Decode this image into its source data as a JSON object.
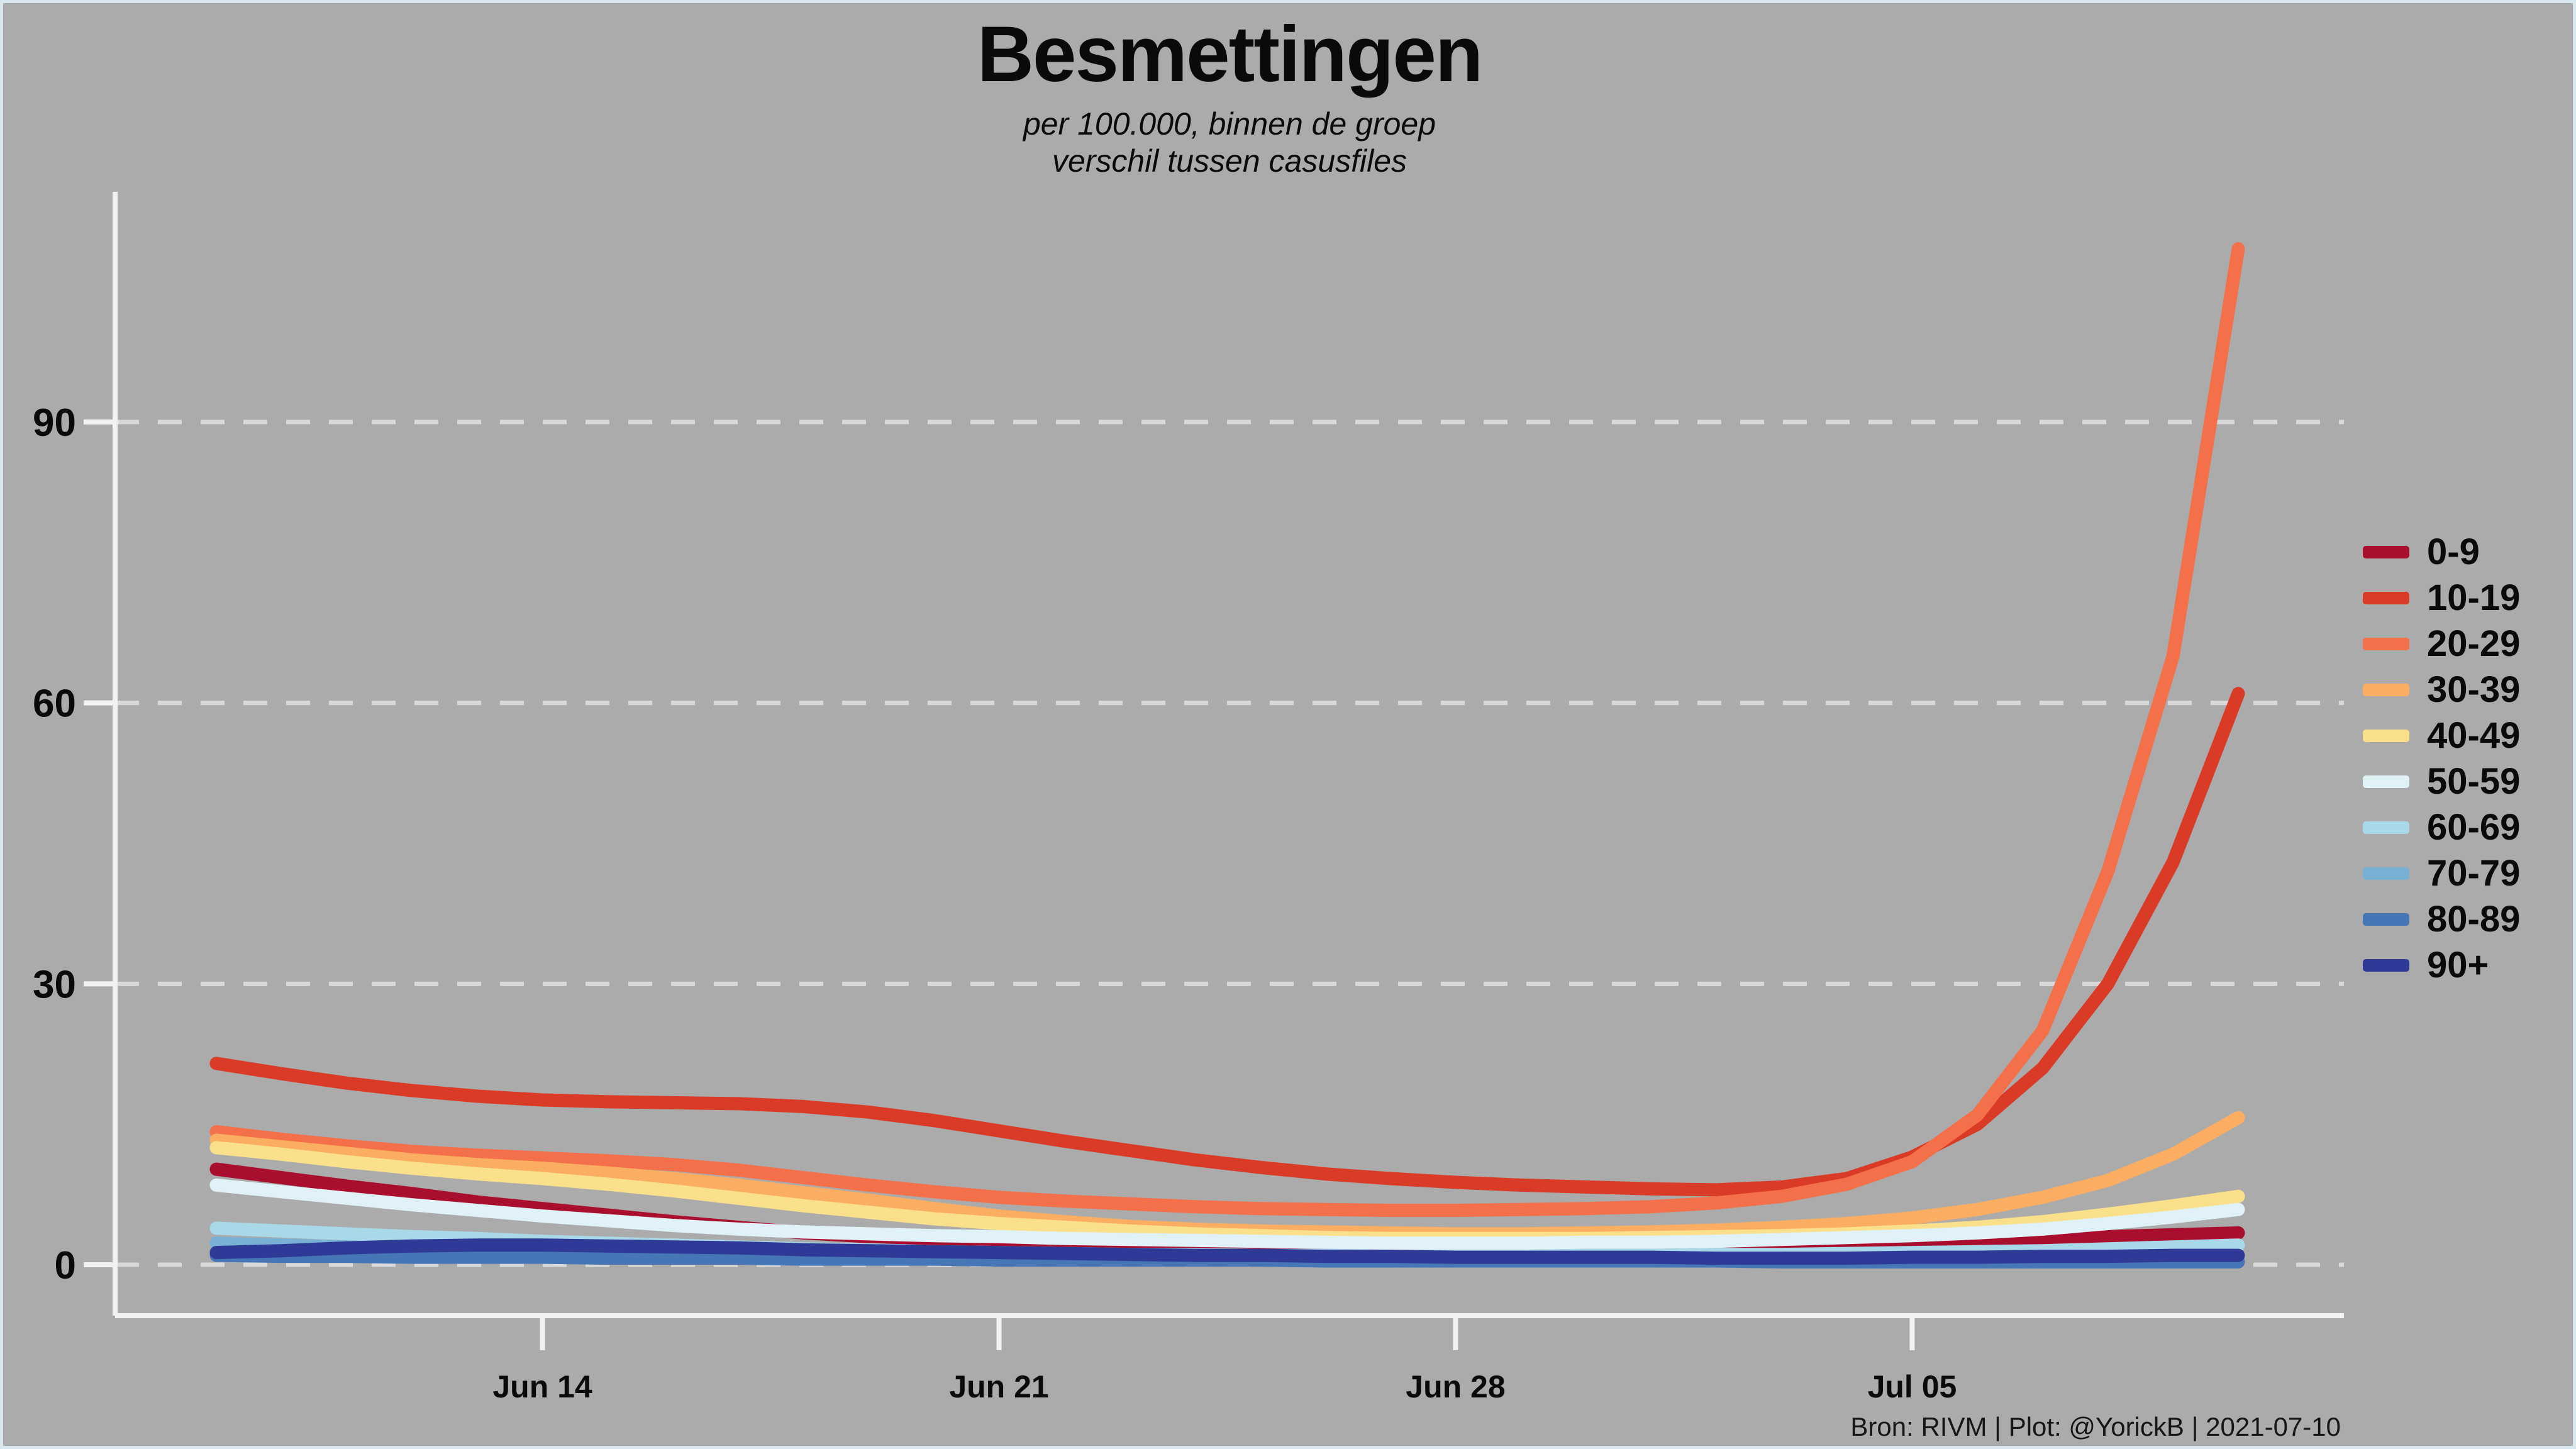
{
  "title": "Besmettingen",
  "subtitle_line1": "per 100.000, binnen de groep",
  "subtitle_line2": "verschil tussen casusfiles",
  "footer": "Bron: RIVM | Plot: @YorickB  |  2021-07-10",
  "colors": {
    "background": "#ababab",
    "border": "#d8e7ee",
    "axis": "#f2f2f2",
    "gridline": "#d9d9d9",
    "text": "#0a0a0a"
  },
  "chart_data": {
    "type": "line",
    "title": "Besmettingen",
    "subtitle": "per 100.000, binnen de groep / verschil tussen casusfiles",
    "xlabel": "",
    "ylabel": "",
    "ylim": [
      -2,
      114
    ],
    "y_ticks": [
      0,
      30,
      60,
      90
    ],
    "grid": "horizontal-dashed",
    "legend_position": "right",
    "x": [
      "Jun 09",
      "Jun 10",
      "Jun 11",
      "Jun 12",
      "Jun 13",
      "Jun 14",
      "Jun 15",
      "Jun 16",
      "Jun 17",
      "Jun 18",
      "Jun 19",
      "Jun 20",
      "Jun 21",
      "Jun 22",
      "Jun 23",
      "Jun 24",
      "Jun 25",
      "Jun 26",
      "Jun 27",
      "Jun 28",
      "Jun 29",
      "Jun 30",
      "Jul 01",
      "Jul 02",
      "Jul 03",
      "Jul 04",
      "Jul 05",
      "Jul 06",
      "Jul 07",
      "Jul 08",
      "Jul 09",
      "Jul 10"
    ],
    "x_ticks": [
      {
        "label": "Jun 14",
        "index": 5
      },
      {
        "label": "Jun 21",
        "index": 12
      },
      {
        "label": "Jun 28",
        "index": 19
      },
      {
        "label": "Jul 05",
        "index": 26
      }
    ],
    "series": [
      {
        "name": "0-9",
        "color": "#a90e2e",
        "values": [
          10.2,
          9.3,
          8.4,
          7.6,
          6.7,
          6.0,
          5.3,
          4.6,
          4.0,
          3.4,
          3.0,
          2.7,
          2.4,
          2.2,
          2.1,
          2.0,
          1.9,
          1.9,
          1.8,
          1.8,
          1.8,
          1.9,
          1.9,
          2.0,
          2.1,
          2.2,
          2.4,
          2.6,
          2.8,
          3.0,
          3.2,
          3.4
        ]
      },
      {
        "name": "10-19",
        "color": "#da3b27",
        "values": [
          21.5,
          20.4,
          19.4,
          18.6,
          18.0,
          17.6,
          17.4,
          17.3,
          17.2,
          16.9,
          16.3,
          15.4,
          14.3,
          13.2,
          12.2,
          11.2,
          10.4,
          9.7,
          9.2,
          8.8,
          8.5,
          8.3,
          8.1,
          8.0,
          8.3,
          9.2,
          11.5,
          15.0,
          21.0,
          30.0,
          43.0,
          61.0
        ]
      },
      {
        "name": "20-29",
        "color": "#f4704a",
        "values": [
          14.2,
          13.4,
          12.7,
          12.1,
          11.7,
          11.4,
          11.1,
          10.7,
          10.1,
          9.3,
          8.5,
          7.8,
          7.2,
          6.8,
          6.5,
          6.2,
          6.0,
          5.9,
          5.8,
          5.8,
          5.9,
          6.0,
          6.2,
          6.6,
          7.3,
          8.6,
          11.0,
          16.0,
          25.0,
          42.0,
          65.0,
          108.5
        ]
      },
      {
        "name": "30-39",
        "color": "#fbae61",
        "values": [
          13.3,
          12.6,
          11.9,
          11.2,
          10.7,
          10.3,
          9.8,
          9.2,
          8.5,
          7.7,
          6.9,
          6.0,
          5.2,
          4.6,
          4.1,
          3.8,
          3.6,
          3.5,
          3.4,
          3.3,
          3.3,
          3.4,
          3.5,
          3.7,
          4.0,
          4.4,
          5.0,
          5.9,
          7.2,
          9.0,
          11.8,
          15.7
        ]
      },
      {
        "name": "40-49",
        "color": "#fbe08c",
        "values": [
          12.5,
          11.8,
          11.0,
          10.3,
          9.7,
          9.2,
          8.6,
          7.9,
          7.1,
          6.3,
          5.6,
          4.9,
          4.4,
          4.0,
          3.6,
          3.3,
          3.1,
          2.9,
          2.8,
          2.8,
          2.8,
          2.8,
          2.9,
          3.0,
          3.1,
          3.3,
          3.6,
          4.0,
          4.6,
          5.4,
          6.3,
          7.3
        ]
      },
      {
        "name": "50-59",
        "color": "#e0f1f7",
        "values": [
          8.5,
          7.8,
          7.1,
          6.4,
          5.8,
          5.2,
          4.7,
          4.2,
          3.8,
          3.5,
          3.3,
          3.1,
          3.0,
          2.8,
          2.7,
          2.6,
          2.5,
          2.4,
          2.3,
          2.3,
          2.3,
          2.4,
          2.4,
          2.5,
          2.7,
          2.9,
          3.1,
          3.4,
          3.8,
          4.4,
          5.1,
          5.9
        ]
      },
      {
        "name": "60-69",
        "color": "#a9d8e8",
        "values": [
          3.9,
          3.6,
          3.3,
          3.0,
          2.8,
          2.5,
          2.3,
          2.1,
          1.9,
          1.7,
          1.6,
          1.4,
          1.3,
          1.2,
          1.1,
          1.1,
          1.0,
          1.0,
          0.9,
          0.9,
          0.9,
          1.0,
          1.0,
          1.1,
          1.1,
          1.2,
          1.3,
          1.4,
          1.5,
          1.7,
          1.9,
          2.1
        ]
      },
      {
        "name": "70-79",
        "color": "#78b1d4",
        "values": [
          2.3,
          2.1,
          1.9,
          1.7,
          1.5,
          1.4,
          1.3,
          1.2,
          1.1,
          1.0,
          1.0,
          0.9,
          0.9,
          0.8,
          0.8,
          0.7,
          0.7,
          0.7,
          0.6,
          0.6,
          0.6,
          0.6,
          0.6,
          0.5,
          0.5,
          0.5,
          0.5,
          0.5,
          0.4,
          0.4,
          0.4,
          0.4
        ]
      },
      {
        "name": "80-89",
        "color": "#4776b6",
        "values": [
          1.0,
          0.9,
          0.9,
          0.8,
          0.8,
          0.8,
          0.7,
          0.7,
          0.7,
          0.6,
          0.6,
          0.6,
          0.5,
          0.5,
          0.5,
          0.5,
          0.5,
          0.4,
          0.4,
          0.4,
          0.4,
          0.4,
          0.4,
          0.4,
          0.3,
          0.3,
          0.3,
          0.3,
          0.3,
          0.3,
          0.3,
          0.3
        ]
      },
      {
        "name": "90+",
        "color": "#2f3a97",
        "values": [
          1.3,
          1.5,
          1.8,
          2.0,
          2.1,
          2.1,
          2.0,
          1.9,
          1.8,
          1.6,
          1.5,
          1.4,
          1.3,
          1.2,
          1.1,
          1.0,
          1.0,
          0.9,
          0.9,
          0.8,
          0.8,
          0.8,
          0.8,
          0.7,
          0.7,
          0.7,
          0.8,
          0.8,
          0.9,
          0.9,
          1.0,
          1.0
        ]
      }
    ]
  }
}
